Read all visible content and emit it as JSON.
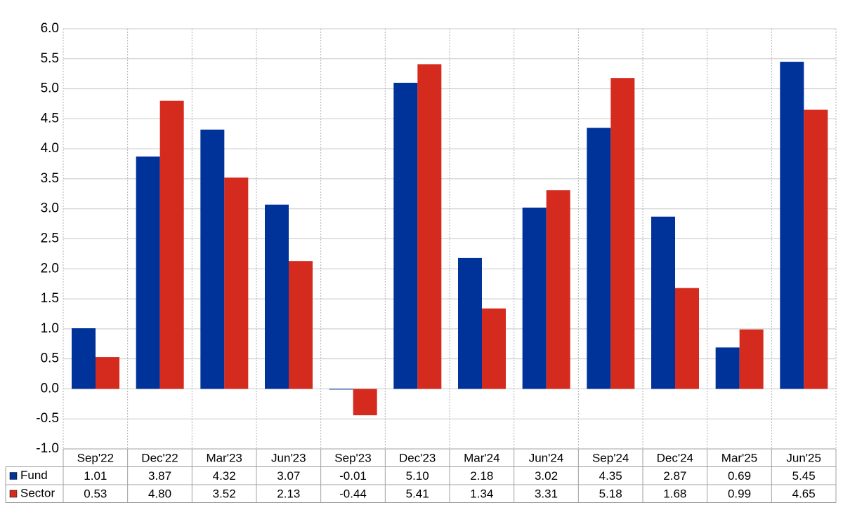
{
  "chart_data": {
    "type": "bar",
    "categories": [
      "Sep'22",
      "Dec'22",
      "Mar'23",
      "Jun'23",
      "Sep'23",
      "Dec'23",
      "Mar'24",
      "Jun'24",
      "Sep'24",
      "Dec'24",
      "Mar'25",
      "Jun'25"
    ],
    "series": [
      {
        "name": "Fund",
        "color": "#003399",
        "values": [
          1.01,
          3.87,
          4.32,
          3.07,
          -0.01,
          5.1,
          2.18,
          3.02,
          4.35,
          2.87,
          0.69,
          5.45
        ],
        "value_labels": [
          "1.01",
          "3.87",
          "4.32",
          "3.07",
          "-0.01",
          "5.10",
          "2.18",
          "3.02",
          "4.35",
          "2.87",
          "0.69",
          "5.45"
        ]
      },
      {
        "name": "Sector",
        "color": "#d52b1e",
        "values": [
          0.53,
          4.8,
          3.52,
          2.13,
          -0.44,
          5.41,
          1.34,
          3.31,
          5.18,
          1.68,
          0.99,
          4.65
        ],
        "value_labels": [
          "0.53",
          "4.80",
          "3.52",
          "2.13",
          "-0.44",
          "5.41",
          "1.34",
          "3.31",
          "5.18",
          "1.68",
          "0.99",
          "4.65"
        ]
      }
    ],
    "ylim": [
      -1,
      6
    ],
    "yticks": [
      {
        "value": -1,
        "label": "-1.0"
      },
      {
        "value": -0.5,
        "label": "-0.5"
      },
      {
        "value": 0,
        "label": "0.0"
      },
      {
        "value": 0.5,
        "label": "0.5"
      },
      {
        "value": 1,
        "label": "1.0"
      },
      {
        "value": 1.5,
        "label": "1.5"
      },
      {
        "value": 2,
        "label": "2.0"
      },
      {
        "value": 2.5,
        "label": "2.5"
      },
      {
        "value": 3,
        "label": "3.0"
      },
      {
        "value": 3.5,
        "label": "3.5"
      },
      {
        "value": 4,
        "label": "4.0"
      },
      {
        "value": 4.5,
        "label": "4.5"
      },
      {
        "value": 5,
        "label": "5.0"
      },
      {
        "value": 5.5,
        "label": "5.5"
      },
      {
        "value": 6,
        "label": "6.0"
      }
    ],
    "grid": true,
    "negative_color": "#ff0000"
  }
}
